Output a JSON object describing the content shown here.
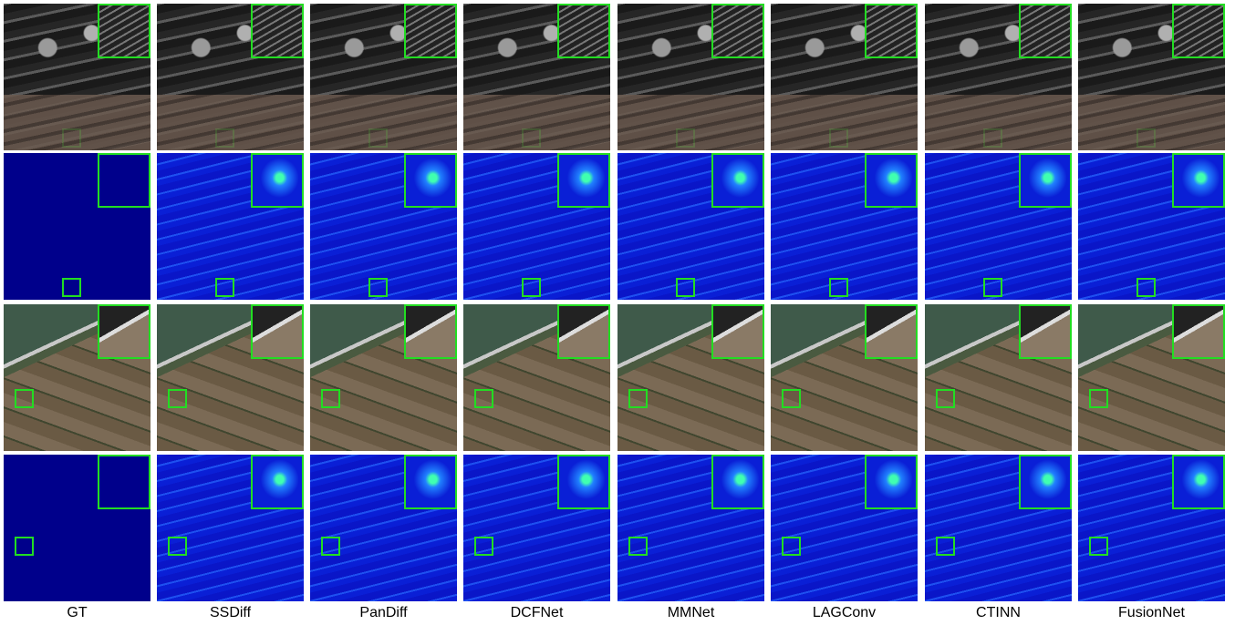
{
  "columns": [
    "GT",
    "SSDiff",
    "PanDiff",
    "DCFNet",
    "MMNet",
    "LAGConv",
    "CTINN",
    "FusionNet"
  ]
}
